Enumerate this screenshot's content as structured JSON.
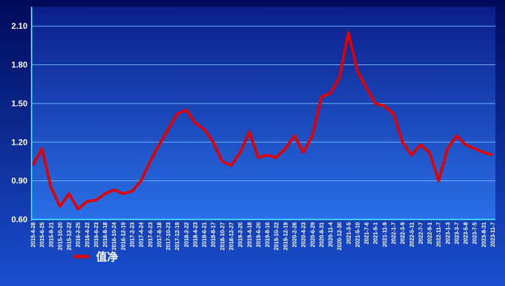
{
  "chart_data": {
    "type": "line",
    "categories": [
      "2015-4-28",
      "2015-6-25",
      "2015-8-21",
      "2015-10-20",
      "2015-12-22",
      "2016-2-25",
      "2016-4-22",
      "2016-6-23",
      "2016-8-18",
      "2016-10-24",
      "2016-12-19",
      "2017-2-23",
      "2017-4-24",
      "2017-6-23",
      "2017-8-18",
      "2017-10-23",
      "2017-12-19",
      "2018-2-22",
      "2018-4-23",
      "2018-6-21",
      "2018-8-17",
      "2018-10-27",
      "2018-12-27",
      "2019-2-20",
      "2019-4-18",
      "2019-6-20",
      "2019-8-16",
      "2019-10-22",
      "2019-12-19",
      "2020-2-26",
      "2020-4-23",
      "2020-6-29",
      "2020-8-31",
      "2020-11-4",
      "2020-12-30",
      "2021-3-5",
      "2021-5-10",
      "2021-7-6",
      "2021-9-1",
      "2021-11-9",
      "2022-1-7",
      "2022-3-9",
      "2022-5-11",
      "2022-7-7",
      "2022-9-1",
      "2022-11-7",
      "2023-1-3",
      "2023-3-7",
      "2023-5-8",
      "2023-7-5",
      "2023-8-31",
      "2023-11-7"
    ],
    "series": [
      {
        "name": "值净",
        "color": "#e00000",
        "values": [
          1.02,
          1.15,
          0.85,
          0.7,
          0.8,
          0.68,
          0.74,
          0.75,
          0.8,
          0.83,
          0.8,
          0.82,
          0.9,
          1.05,
          1.18,
          1.3,
          1.42,
          1.45,
          1.35,
          1.3,
          1.2,
          1.05,
          1.02,
          1.12,
          1.28,
          1.08,
          1.1,
          1.08,
          1.15,
          1.25,
          1.12,
          1.25,
          1.55,
          1.58,
          1.7,
          2.05,
          1.75,
          1.62,
          1.5,
          1.48,
          1.42,
          1.2,
          1.1,
          1.18,
          1.12,
          0.9,
          1.15,
          1.25,
          1.18,
          1.15,
          1.12,
          1.1
        ]
      }
    ],
    "ylim": [
      0.6,
      2.25
    ],
    "yticks": [
      {
        "value": 0.6,
        "label": "0.60"
      },
      {
        "value": 0.9,
        "label": "0.90"
      },
      {
        "value": 1.2,
        "label": "1.20"
      },
      {
        "value": 1.5,
        "label": "1.50"
      },
      {
        "value": 1.8,
        "label": "1.80"
      },
      {
        "value": 2.1,
        "label": "2.10"
      }
    ],
    "grid": true
  }
}
